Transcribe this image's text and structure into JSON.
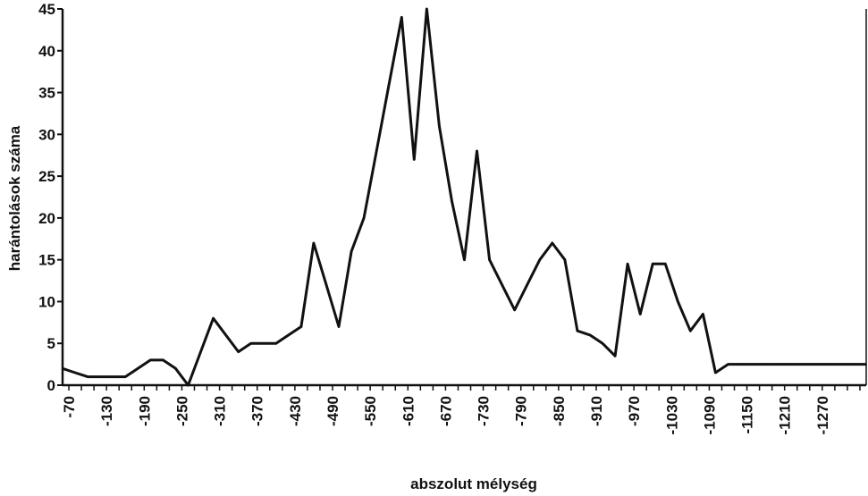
{
  "chart_data": {
    "type": "line",
    "title": "",
    "xlabel": "abszolut mélység",
    "ylabel": "harántolások száma",
    "ylim": [
      0,
      45
    ],
    "yticks": [
      0,
      5,
      10,
      15,
      20,
      25,
      30,
      35,
      40,
      45
    ],
    "xlim": [
      -60,
      -1340
    ],
    "xtick_labels": [
      "-70",
      "-130",
      "-190",
      "-250",
      "-310",
      "-370",
      "-430",
      "-490",
      "-550",
      "-610",
      "-670",
      "-730",
      "-790",
      "-850",
      "-910",
      "-970",
      "-1030",
      "-1090",
      "-1150",
      "-1210",
      "-1270"
    ],
    "xtick_values": [
      -70,
      -130,
      -190,
      -250,
      -310,
      -370,
      -430,
      -490,
      -550,
      -610,
      -670,
      -730,
      -790,
      -850,
      -910,
      -970,
      -1030,
      -1090,
      -1150,
      -1210,
      -1270
    ],
    "series": [
      {
        "name": "",
        "color": "#111111",
        "x": [
          -60,
          -80,
          -100,
          -120,
          -140,
          -160,
          -180,
          -200,
          -220,
          -240,
          -260,
          -280,
          -300,
          -320,
          -340,
          -360,
          -380,
          -400,
          -420,
          -440,
          -460,
          -480,
          -500,
          -520,
          -540,
          -560,
          -580,
          -600,
          -620,
          -640,
          -660,
          -680,
          -700,
          -720,
          -740,
          -760,
          -780,
          -800,
          -820,
          -840,
          -860,
          -880,
          -900,
          -920,
          -940,
          -960,
          -980,
          -1000,
          -1020,
          -1040,
          -1060,
          -1080,
          -1100,
          -1120,
          -1140,
          -1160,
          -1180,
          -1200,
          -1220,
          -1240,
          -1260,
          -1280,
          -1300,
          -1320,
          -1340
        ],
        "y": [
          2,
          1.5,
          1,
          1,
          1,
          1,
          2,
          3,
          3,
          2,
          0,
          4,
          8,
          6,
          4,
          5,
          5,
          5,
          6,
          7,
          17,
          12,
          7,
          16,
          20,
          28,
          36,
          44,
          27,
          45,
          31,
          22,
          15,
          28,
          15,
          12,
          9,
          12,
          15,
          17,
          15,
          6.5,
          6,
          5,
          3.5,
          14.5,
          8.5,
          14.5,
          14.5,
          10,
          6.5,
          8.5,
          1.5,
          2.5,
          2.5,
          2.5,
          2.5,
          2.5,
          2.5,
          2.5,
          2.5,
          2.5,
          2.5,
          2.5,
          2.5
        ]
      }
    ],
    "grid": false,
    "legend": "none"
  }
}
